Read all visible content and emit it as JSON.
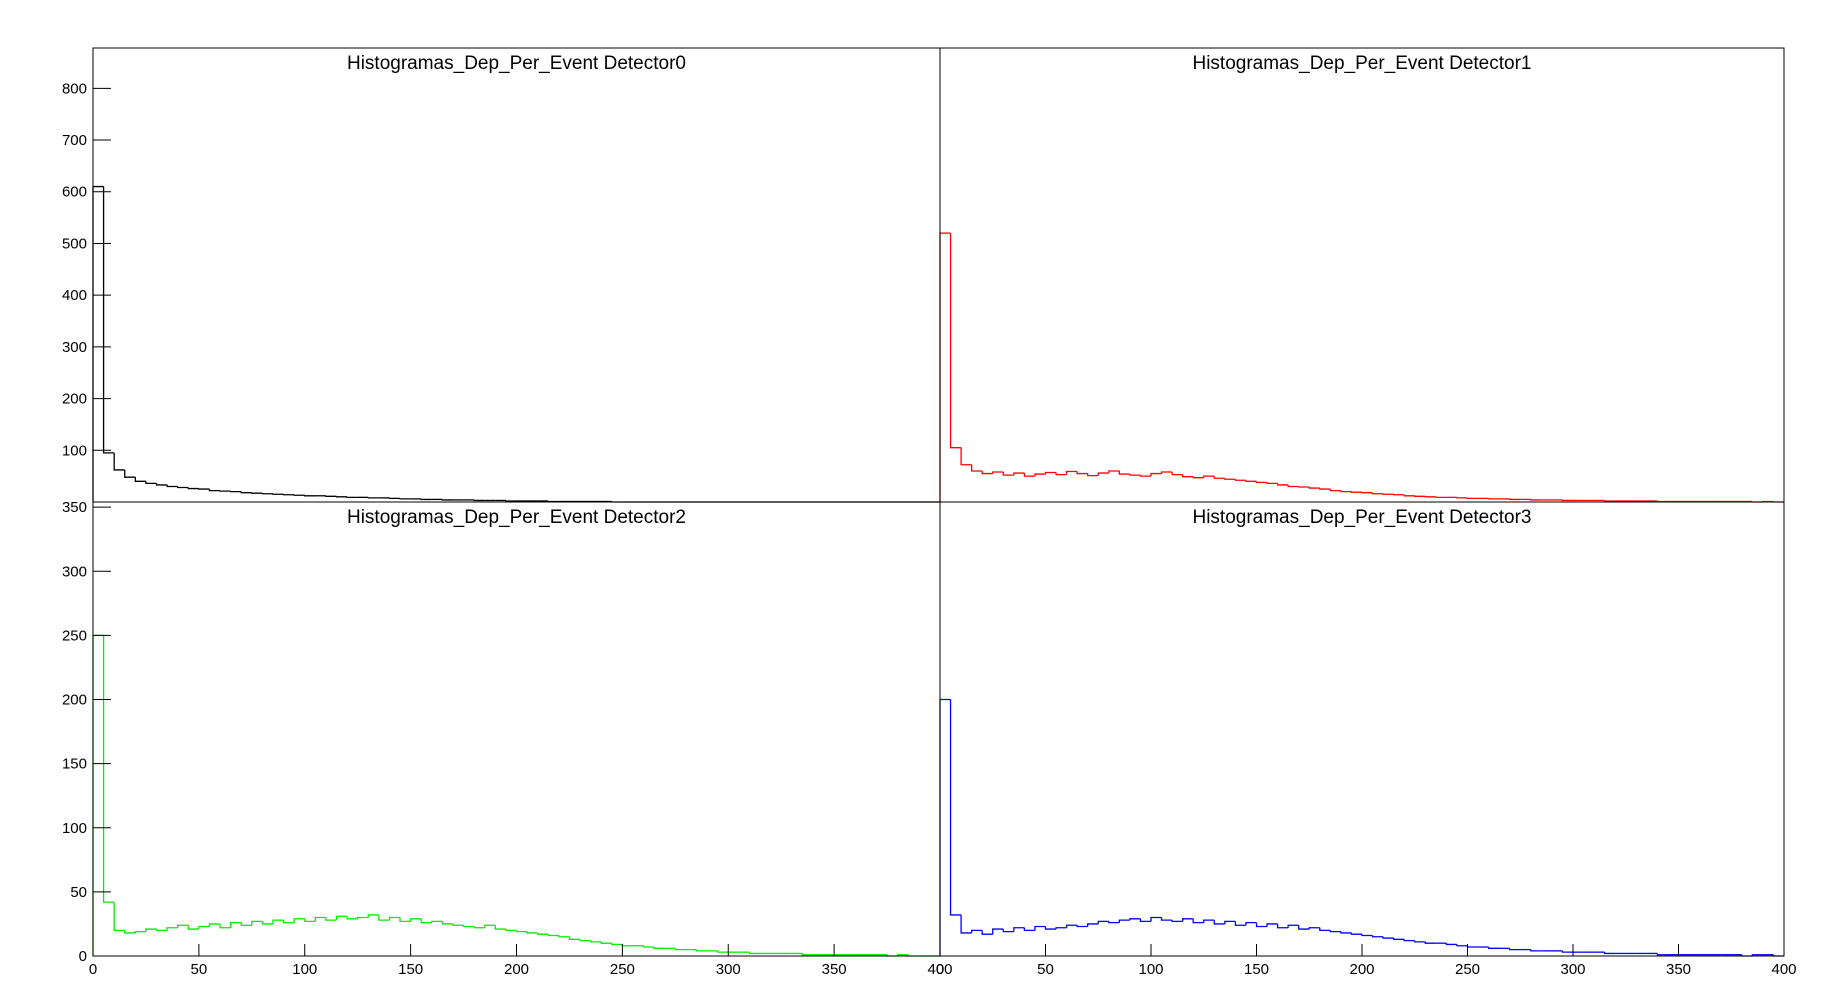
{
  "chart_data": [
    {
      "type": "histogram",
      "title": "Histogramas_Dep_Per_Event Detector0",
      "color": "#000000",
      "bins": [
        0,
        5,
        10,
        15,
        20,
        25,
        30,
        35,
        40,
        45,
        50,
        55,
        60,
        65,
        70,
        75,
        80,
        85,
        90,
        95,
        100,
        105,
        110,
        115,
        120,
        125,
        130,
        135,
        140,
        145,
        150,
        155,
        160,
        165,
        170,
        175,
        180,
        185,
        190,
        195,
        200,
        205,
        210,
        215,
        220,
        225,
        230,
        235,
        240,
        245,
        250,
        255,
        260,
        265,
        270,
        275,
        280,
        285,
        290,
        295,
        300,
        305,
        310,
        315,
        320,
        325,
        330,
        335,
        340,
        345,
        350,
        355,
        360,
        365,
        370,
        375,
        380,
        385,
        390,
        395,
        400
      ],
      "values": [
        610,
        95,
        62,
        48,
        40,
        36,
        33,
        30,
        28,
        26,
        25,
        22,
        21,
        20,
        18,
        17,
        16,
        15,
        14,
        13,
        12,
        12,
        11,
        10,
        9,
        9,
        8,
        8,
        7,
        6,
        6,
        5,
        5,
        4,
        4,
        4,
        3,
        3,
        3,
        2,
        2,
        2,
        2,
        1,
        1,
        1,
        1,
        1,
        1,
        0,
        0,
        0,
        0,
        0,
        0,
        0,
        0,
        0,
        0,
        0,
        0,
        0,
        0,
        0,
        0,
        0,
        0,
        0,
        0,
        0,
        0,
        0,
        0,
        0,
        0,
        0,
        0,
        0,
        0,
        0
      ],
      "xlim": [
        0,
        400
      ],
      "ylim": [
        0,
        878
      ],
      "yticks": [
        100,
        200,
        300,
        400,
        500,
        600,
        700,
        800
      ]
    },
    {
      "type": "histogram",
      "title": "Histogramas_Dep_Per_Event Detector1",
      "color": "#ff0000",
      "bins": [
        0,
        5,
        10,
        15,
        20,
        25,
        30,
        35,
        40,
        45,
        50,
        55,
        60,
        65,
        70,
        75,
        80,
        85,
        90,
        95,
        100,
        105,
        110,
        115,
        120,
        125,
        130,
        135,
        140,
        145,
        150,
        155,
        160,
        165,
        170,
        175,
        180,
        185,
        190,
        195,
        200,
        205,
        210,
        215,
        220,
        225,
        230,
        235,
        240,
        245,
        250,
        255,
        260,
        265,
        270,
        275,
        280,
        285,
        290,
        295,
        300,
        305,
        310,
        315,
        320,
        325,
        330,
        335,
        340,
        345,
        350,
        355,
        360,
        365,
        370,
        375,
        380,
        385,
        390,
        395,
        400
      ],
      "values": [
        520,
        105,
        72,
        60,
        55,
        58,
        52,
        56,
        50,
        54,
        57,
        53,
        59,
        55,
        51,
        56,
        60,
        54,
        52,
        50,
        55,
        58,
        53,
        49,
        47,
        50,
        46,
        44,
        42,
        40,
        38,
        36,
        33,
        30,
        29,
        27,
        25,
        22,
        20,
        19,
        18,
        16,
        15,
        14,
        12,
        11,
        10,
        9,
        9,
        8,
        7,
        7,
        6,
        6,
        5,
        5,
        4,
        4,
        4,
        3,
        3,
        3,
        3,
        2,
        2,
        2,
        2,
        2,
        1,
        1,
        1,
        1,
        1,
        1,
        1,
        1,
        1,
        0,
        1,
        0
      ],
      "xlim": [
        0,
        400
      ],
      "ylim": [
        0,
        878
      ]
    },
    {
      "type": "histogram",
      "title": "Histogramas_Dep_Per_Event Detector2",
      "color": "#00ee00",
      "bins": [
        0,
        5,
        10,
        15,
        20,
        25,
        30,
        35,
        40,
        45,
        50,
        55,
        60,
        65,
        70,
        75,
        80,
        85,
        90,
        95,
        100,
        105,
        110,
        115,
        120,
        125,
        130,
        135,
        140,
        145,
        150,
        155,
        160,
        165,
        170,
        175,
        180,
        185,
        190,
        195,
        200,
        205,
        210,
        215,
        220,
        225,
        230,
        235,
        240,
        245,
        250,
        255,
        260,
        265,
        270,
        275,
        280,
        285,
        290,
        295,
        300,
        305,
        310,
        315,
        320,
        325,
        330,
        335,
        340,
        345,
        350,
        355,
        360,
        365,
        370,
        375,
        380,
        385,
        390,
        395,
        400
      ],
      "values": [
        250,
        42,
        20,
        18,
        19,
        21,
        20,
        22,
        24,
        21,
        23,
        25,
        22,
        26,
        24,
        27,
        25,
        28,
        26,
        29,
        27,
        30,
        28,
        31,
        29,
        30,
        32,
        28,
        30,
        27,
        29,
        26,
        27,
        25,
        24,
        23,
        22,
        24,
        21,
        20,
        19,
        18,
        17,
        16,
        15,
        13,
        12,
        11,
        10,
        9,
        8,
        8,
        7,
        6,
        6,
        5,
        5,
        4,
        4,
        3,
        3,
        3,
        2,
        2,
        2,
        2,
        2,
        1,
        1,
        1,
        1,
        1,
        1,
        1,
        1,
        0,
        1,
        0,
        0,
        0
      ],
      "xlim": [
        0,
        400
      ],
      "ylim": [
        0,
        354
      ],
      "xticks": [
        0,
        50,
        100,
        150,
        200,
        250,
        300,
        350,
        400
      ],
      "yticks": [
        0,
        50,
        100,
        150,
        200,
        250,
        300,
        350
      ]
    },
    {
      "type": "histogram",
      "title": "Histogramas_Dep_Per_Event Detector3",
      "color": "#0000ff",
      "bins": [
        0,
        5,
        10,
        15,
        20,
        25,
        30,
        35,
        40,
        45,
        50,
        55,
        60,
        65,
        70,
        75,
        80,
        85,
        90,
        95,
        100,
        105,
        110,
        115,
        120,
        125,
        130,
        135,
        140,
        145,
        150,
        155,
        160,
        165,
        170,
        175,
        180,
        185,
        190,
        195,
        200,
        205,
        210,
        215,
        220,
        225,
        230,
        235,
        240,
        245,
        250,
        255,
        260,
        265,
        270,
        275,
        280,
        285,
        290,
        295,
        300,
        305,
        310,
        315,
        320,
        325,
        330,
        335,
        340,
        345,
        350,
        355,
        360,
        365,
        370,
        375,
        380,
        385,
        390,
        395,
        400
      ],
      "values": [
        200,
        32,
        18,
        20,
        17,
        21,
        19,
        22,
        20,
        23,
        21,
        22,
        24,
        23,
        25,
        27,
        26,
        28,
        29,
        27,
        30,
        28,
        27,
        29,
        26,
        28,
        25,
        27,
        24,
        26,
        23,
        25,
        22,
        24,
        21,
        22,
        20,
        19,
        18,
        17,
        16,
        15,
        14,
        13,
        12,
        11,
        10,
        10,
        9,
        8,
        7,
        7,
        6,
        6,
        5,
        5,
        4,
        4,
        4,
        3,
        3,
        3,
        3,
        2,
        2,
        2,
        2,
        2,
        1,
        1,
        1,
        1,
        1,
        1,
        1,
        1,
        0,
        1,
        1,
        0
      ],
      "xlim": [
        0,
        400
      ],
      "ylim": [
        0,
        354
      ],
      "xticks": [
        0,
        50,
        100,
        150,
        200,
        250,
        300,
        350,
        400
      ]
    }
  ]
}
